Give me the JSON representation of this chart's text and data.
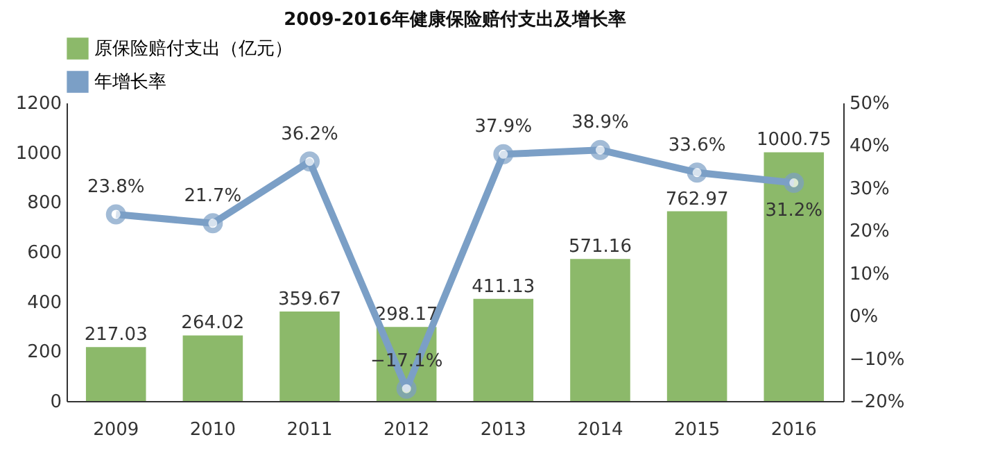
{
  "chart_data": {
    "type": "bar",
    "title": "2009-2016年健康保险赔付支出及增长率",
    "categories": [
      "2009",
      "2010",
      "2011",
      "2012",
      "2013",
      "2014",
      "2015",
      "2016"
    ],
    "series": [
      {
        "name": "原保险赔付支出（亿元）",
        "color": "#8cb96a",
        "values": [
          217.03,
          264.02,
          359.67,
          298.17,
          411.13,
          571.16,
          762.97,
          1000.75
        ],
        "value_labels": [
          "217.03",
          "264.02",
          "359.67",
          "298.17",
          "411.13",
          "571.16",
          "762.97",
          "1000.75"
        ]
      },
      {
        "name": "年增长率",
        "type": "line",
        "axis": "y2",
        "color": "#7b9fc6",
        "values": [
          23.8,
          21.7,
          36.2,
          -17.1,
          37.9,
          38.9,
          33.6,
          31.2
        ],
        "value_labels": [
          "23.8%",
          "21.7%",
          "36.2%",
          "−17.1%",
          "37.9%",
          "38.9%",
          "33.6%",
          "31.2%"
        ]
      }
    ],
    "ylim": [
      0,
      1200
    ],
    "yticks": [
      0,
      200,
      400,
      600,
      800,
      1000,
      1200
    ],
    "y2lim": [
      -20,
      50
    ],
    "y2ticks": [
      {
        "value": -20,
        "label": "−20%"
      },
      {
        "value": -10,
        "label": "−10%"
      },
      {
        "value": 0,
        "label": "0%"
      },
      {
        "value": 10,
        "label": "10%"
      },
      {
        "value": 20,
        "label": "20%"
      },
      {
        "value": 30,
        "label": "30%"
      },
      {
        "value": 40,
        "label": "40%"
      },
      {
        "value": 50,
        "label": "50%"
      }
    ],
    "grid": false,
    "legend": "top",
    "marker": "circle",
    "line_style": "solid"
  }
}
